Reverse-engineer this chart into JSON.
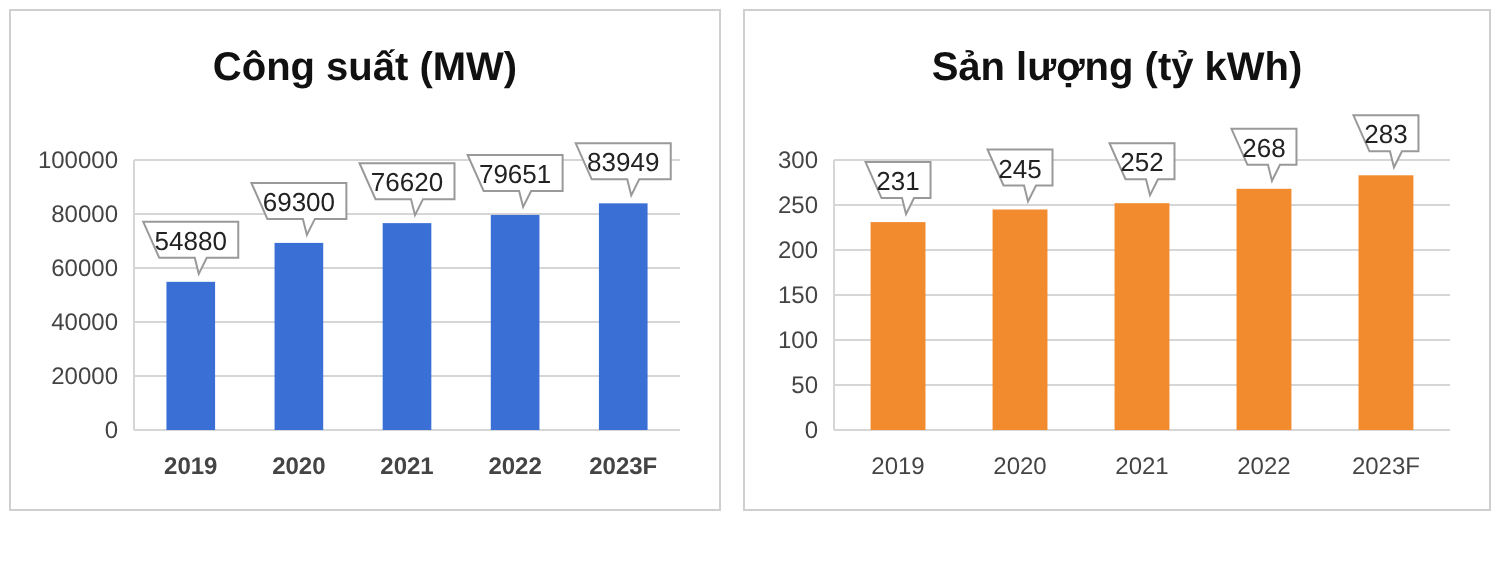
{
  "chart_data": [
    {
      "type": "bar",
      "title": "Công suất (MW)",
      "categories": [
        "2019",
        "2020",
        "2021",
        "2022",
        "2023F"
      ],
      "values": [
        54880,
        69300,
        76620,
        79651,
        83949
      ],
      "color": "#3a6fd6",
      "ylim": [
        0,
        100000
      ],
      "yticks": [
        0,
        20000,
        40000,
        60000,
        80000,
        100000
      ],
      "grid": "y",
      "data_labels": true
    },
    {
      "type": "bar",
      "title": "Sản lượng (tỷ kWh)",
      "categories": [
        "2019",
        "2020",
        "2021",
        "2022",
        "2023F"
      ],
      "values": [
        231,
        245,
        252,
        268,
        283
      ],
      "color": "#f28a2e",
      "ylim": [
        0,
        300
      ],
      "yticks": [
        0,
        50,
        100,
        150,
        200,
        250,
        300
      ],
      "grid": "y",
      "data_labels": true
    }
  ]
}
